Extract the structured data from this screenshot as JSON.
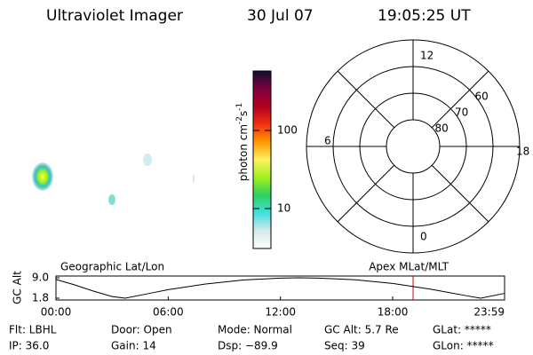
{
  "header": {
    "title": "Ultraviolet Imager",
    "date": "30 Jul 07",
    "time": "19:05:25 UT"
  },
  "colorbar": {
    "label": [
      "photon cm",
      "-2",
      "s",
      "-1"
    ],
    "ylim": [
      3.08,
      577
    ],
    "log": true,
    "yticks": [
      10,
      100
    ]
  },
  "polar": {
    "latlim": [
      90,
      50
    ],
    "rings": [
      80,
      70,
      60
    ],
    "mlt_labels": [
      {
        "value": 12,
        "label": "12"
      },
      {
        "value": 18,
        "label": "18"
      },
      {
        "value": 6,
        "label": "6"
      },
      {
        "value": 0,
        "label": "0"
      }
    ]
  },
  "chart_data": {
    "type": "line",
    "ylabel": "GC Alt",
    "annotations": [
      "Geographic Lat/Lon",
      "Apex MLat/MLT"
    ],
    "x": [
      0,
      1,
      2,
      3,
      3.7,
      5,
      6,
      8,
      10,
      12,
      13,
      14,
      16,
      18,
      20,
      22,
      22.7,
      23.98
    ],
    "series": [
      {
        "name": "GC Alt",
        "color": "#000000",
        "values": [
          8.4,
          6.5,
          4.3,
          2.4,
          1.8,
          3.5,
          4.8,
          6.8,
          8.2,
          8.9,
          9.0,
          8.9,
          8.3,
          7.0,
          5.0,
          2.6,
          1.8,
          3.5
        ]
      }
    ],
    "marker_x": 19.09,
    "marker_color": "#e00000",
    "xlim": [
      0,
      23.98
    ],
    "xticks": [
      {
        "value": 0,
        "label": "00:00"
      },
      {
        "value": 6,
        "label": "06:00"
      },
      {
        "value": 12,
        "label": "12:00"
      },
      {
        "value": 18,
        "label": "18:00"
      },
      {
        "value": 23.98,
        "label": "23:59"
      }
    ],
    "ylim": [
      1.8,
      9.0
    ],
    "yticks": [
      {
        "value": 9,
        "label": "9.0"
      },
      1.8
    ]
  },
  "footer": [
    [
      "Flt: LBHL",
      "Door: Open",
      "Mode: Normal",
      "GC Alt: 5.7 Re",
      "GLat: *****"
    ],
    [
      "IP: 36.0",
      "Gain: 14",
      "Dsp: −89.9",
      "Seq: 39",
      "GLon: *****"
    ]
  ]
}
